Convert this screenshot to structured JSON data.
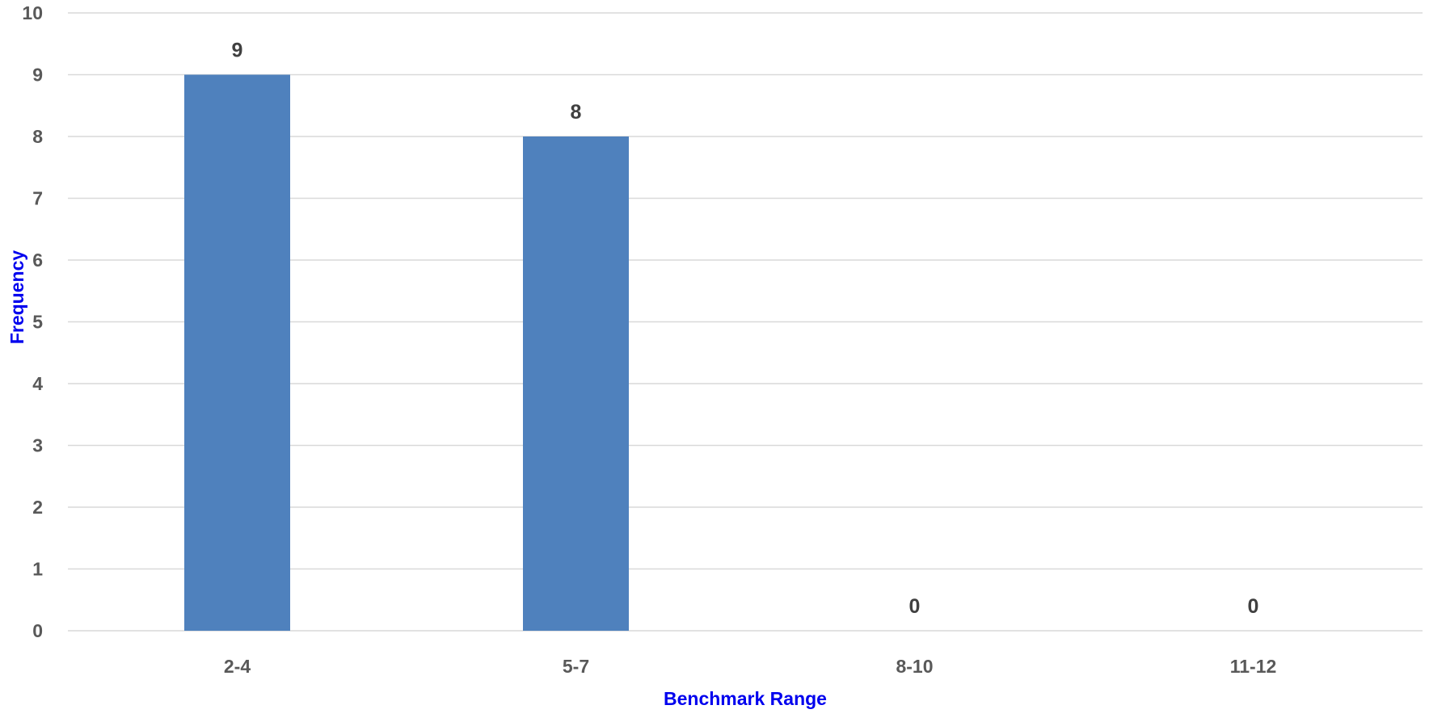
{
  "chart_data": {
    "type": "bar",
    "title": "",
    "xlabel": "Benchmark Range",
    "ylabel": "Frequency",
    "categories": [
      "2-4",
      "5-7",
      "8-10",
      "11-12"
    ],
    "values": [
      9,
      8,
      0,
      0
    ],
    "data_labels": [
      "9",
      "8",
      "0",
      "0"
    ],
    "ylim": [
      0,
      10
    ],
    "yticks": [
      "0",
      "1",
      "2",
      "3",
      "4",
      "5",
      "6",
      "7",
      "8",
      "9",
      "10"
    ],
    "grid": true,
    "legend": "none",
    "colors": {
      "bar": "#4F81BD",
      "axis_title": "#0000EE",
      "tick_label": "#595959",
      "data_label": "#404040",
      "gridline": "#D9D9D9"
    }
  }
}
